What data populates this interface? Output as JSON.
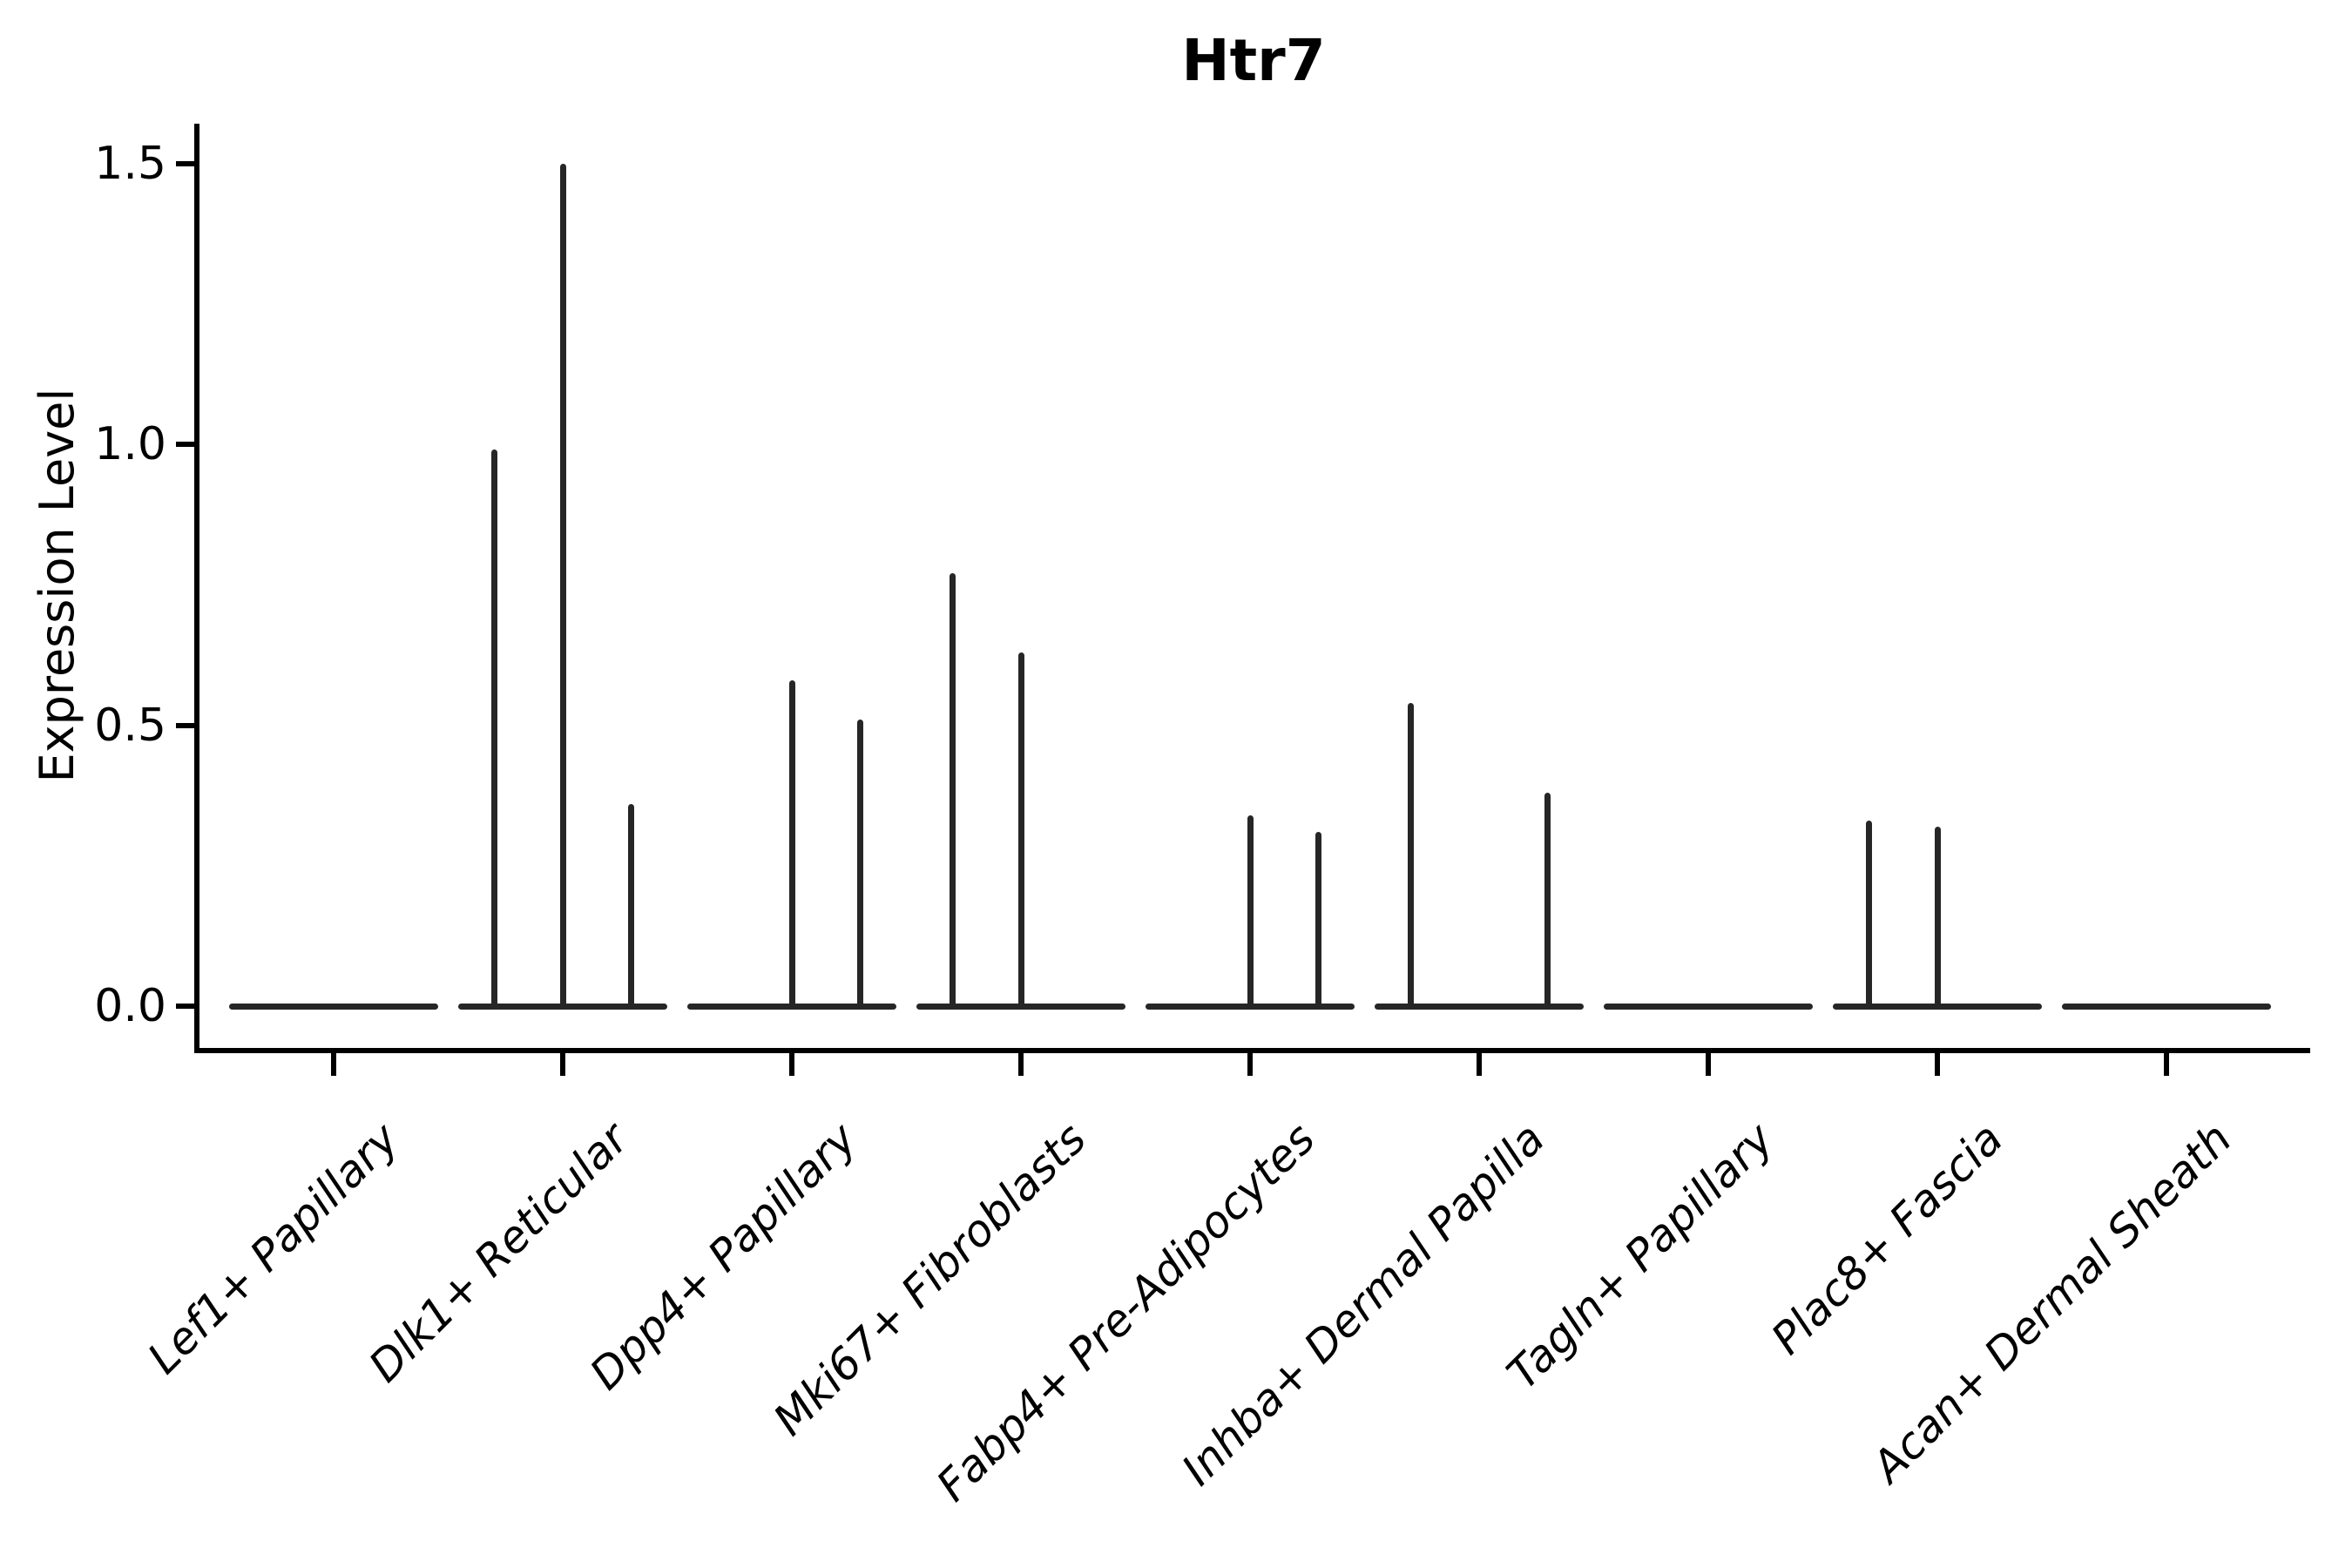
{
  "chart_data": {
    "type": "violin",
    "title": "Htr7",
    "ylabel": "Expression Level",
    "xlabel": "",
    "grid": false,
    "legend": null,
    "ylim": [
      0,
      1.55
    ],
    "yticks": [
      {
        "label": "0.0",
        "value": 0.0
      },
      {
        "label": "0.5",
        "value": 0.5
      },
      {
        "label": "1.0",
        "value": 1.0
      },
      {
        "label": "1.5",
        "value": 1.5
      }
    ],
    "categories": [
      "Lef1+ Papillary",
      "Dlk1+ Reticular",
      "Dpp4+ Papillary",
      "Mki67+ Fibroblasts",
      "Fabp4+ Pre-Adipocytes",
      "Inhba+ Dermal Papilla",
      "Tagln+ Papillary",
      "Plac8+ Fascia",
      "Acan+ Dermal Sheath"
    ],
    "violins": [
      {
        "category": "Lef1+ Papillary",
        "baseline_value": 0,
        "spikes": []
      },
      {
        "category": "Dlk1+ Reticular",
        "baseline_value": 0,
        "spikes": [
          {
            "pos": -0.3,
            "value": 0.99
          },
          {
            "pos": 0,
            "value": 1.5
          },
          {
            "pos": 0.3,
            "value": 0.36
          }
        ]
      },
      {
        "category": "Dpp4+ Papillary",
        "baseline_value": 0,
        "spikes": [
          {
            "pos": 0,
            "value": 0.58
          },
          {
            "pos": 0.3,
            "value": 0.51
          }
        ]
      },
      {
        "category": "Mki67+ Fibroblasts",
        "baseline_value": 0,
        "spikes": [
          {
            "pos": -0.3,
            "value": 0.77
          },
          {
            "pos": 0,
            "value": 0.63
          }
        ]
      },
      {
        "category": "Fabp4+ Pre-Adipocytes",
        "baseline_value": 0,
        "spikes": [
          {
            "pos": 0,
            "value": 0.34
          },
          {
            "pos": 0.3,
            "value": 0.31
          }
        ]
      },
      {
        "category": "Inhba+ Dermal Papilla",
        "baseline_value": 0,
        "spikes": [
          {
            "pos": -0.3,
            "value": 0.54
          },
          {
            "pos": 0.3,
            "value": 0.38
          }
        ]
      },
      {
        "category": "Tagln+ Papillary",
        "baseline_value": 0,
        "spikes": []
      },
      {
        "category": "Plac8+ Fascia",
        "baseline_value": 0,
        "spikes": [
          {
            "pos": -0.3,
            "value": 0.33
          },
          {
            "pos": 0,
            "value": 0.32
          }
        ]
      },
      {
        "category": "Acan+ Dermal Sheath",
        "baseline_value": 0,
        "spikes": []
      }
    ],
    "colors": {
      "line": "#262626",
      "axis": "#000000",
      "text": "#000000",
      "background": "#ffffff"
    }
  }
}
